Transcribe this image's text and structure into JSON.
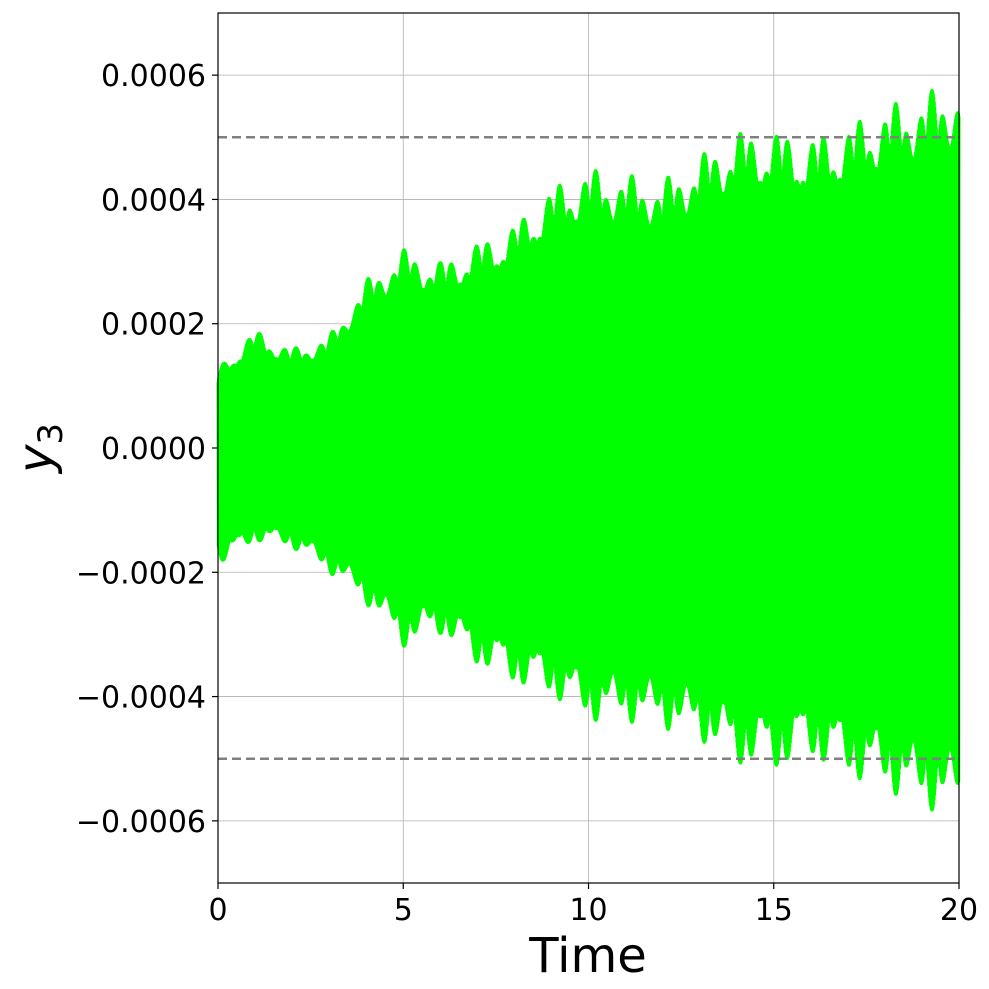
{
  "chart_data": {
    "type": "area",
    "xlabel": "Time",
    "ylabel": "y",
    "ylabel_subscript": "3",
    "xlim": [
      0,
      20
    ],
    "ylim": [
      -0.0007,
      0.0007
    ],
    "x_ticks": [
      0,
      5,
      10,
      15,
      20
    ],
    "x_tick_labels": [
      "0",
      "5",
      "10",
      "15",
      "20"
    ],
    "y_ticks": [
      0.0006,
      0.0004,
      0.0002,
      0.0,
      -0.0002,
      -0.0004,
      -0.0006
    ],
    "y_tick_labels": [
      "0.0006",
      "0.0004",
      "0.0002",
      "0.0000",
      "−0.0002",
      "−0.0004",
      "−0.0006"
    ],
    "grid": true,
    "reference_lines": [
      {
        "y": 0.0005,
        "style": "dashed",
        "color": "#808080"
      },
      {
        "y": -0.0005,
        "style": "dashed",
        "color": "#808080"
      }
    ],
    "series": [
      {
        "color": "#00ff00",
        "description": "rapidly oscillating signal; envelope bounds",
        "x": [
          0,
          1,
          2,
          3,
          4,
          5,
          6,
          7,
          8,
          9,
          10,
          11,
          12,
          13,
          14,
          15,
          16,
          17,
          18,
          19,
          20
        ],
        "upper": [
          0.00013,
          0.00019,
          0.00016,
          0.00018,
          0.00027,
          0.00032,
          0.0003,
          0.00033,
          0.00036,
          0.00042,
          0.00045,
          0.00044,
          0.00043,
          0.00047,
          0.00051,
          0.00051,
          0.0005,
          0.00052,
          0.00055,
          0.00057,
          0.00059
        ],
        "lower": [
          -0.00019,
          -0.00015,
          -0.00016,
          -0.0002,
          -0.00025,
          -0.00032,
          -0.0003,
          -0.00035,
          -0.00038,
          -0.0004,
          -0.00044,
          -0.00044,
          -0.00045,
          -0.00047,
          -0.00051,
          -0.00052,
          -0.0005,
          -0.00053,
          -0.00055,
          -0.00058,
          -0.00059
        ]
      }
    ]
  }
}
